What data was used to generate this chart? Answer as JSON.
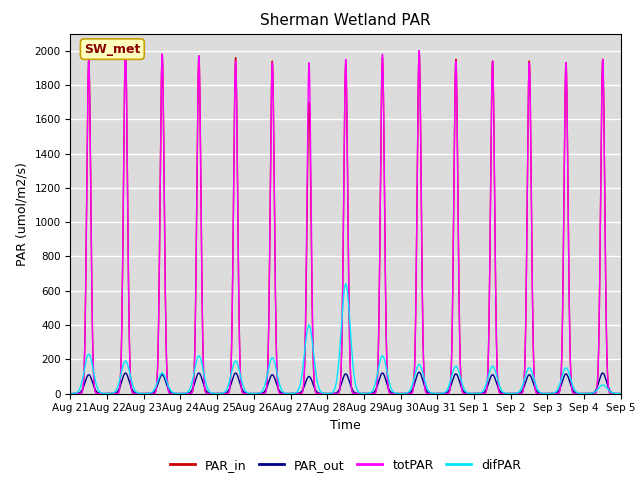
{
  "title": "Sherman Wetland PAR",
  "ylabel": "PAR (umol/m2/s)",
  "xlabel": "Time",
  "station_label": "SW_met",
  "ylim": [
    0,
    2100
  ],
  "yticks": [
    0,
    200,
    400,
    600,
    800,
    1000,
    1200,
    1400,
    1600,
    1800,
    2000
  ],
  "background_color": "#dcdcdc",
  "fig_background": "#ffffff",
  "grid_color": "#ffffff",
  "series": {
    "PAR_in": {
      "color": "#cc0000",
      "lw": 1.0
    },
    "PAR_out": {
      "color": "#00008b",
      "lw": 1.0
    },
    "totPAR": {
      "color": "#ff00ff",
      "lw": 1.0
    },
    "difPAR": {
      "color": "#00e5ff",
      "lw": 1.0
    }
  },
  "n_days": 15,
  "samples_per_day": 144,
  "par_in_peaks": [
    1950,
    2000,
    1980,
    1970,
    1960,
    1940,
    1700,
    1920,
    1960,
    2000,
    1950,
    1940,
    1940,
    1930,
    1950
  ],
  "par_out_peaks": [
    110,
    120,
    110,
    120,
    120,
    110,
    100,
    115,
    120,
    125,
    115,
    110,
    110,
    115,
    120
  ],
  "tot_par_peaks": [
    1950,
    2020,
    1980,
    1970,
    1940,
    1930,
    1930,
    1950,
    1980,
    2000,
    1940,
    1940,
    1930,
    1930,
    1950
  ],
  "dif_par_peaks": [
    230,
    190,
    120,
    220,
    190,
    210,
    400,
    640,
    220,
    170,
    160,
    160,
    150,
    150,
    50
  ],
  "xtick_labels": [
    "Aug 21",
    "Aug 22",
    "Aug 23",
    "Aug 24",
    "Aug 25",
    "Aug 26",
    "Aug 27",
    "Aug 28",
    "Aug 29",
    "Aug 30",
    "Aug 31",
    "Sep 1",
    "Sep 2",
    "Sep 3",
    "Sep 4",
    "Sep 5"
  ],
  "station_box_facecolor": "#ffffc0",
  "station_box_edgecolor": "#c8a000",
  "station_text_color": "#8b0000",
  "title_fontsize": 11,
  "label_fontsize": 9,
  "tick_fontsize": 7.5,
  "legend_fontsize": 9
}
